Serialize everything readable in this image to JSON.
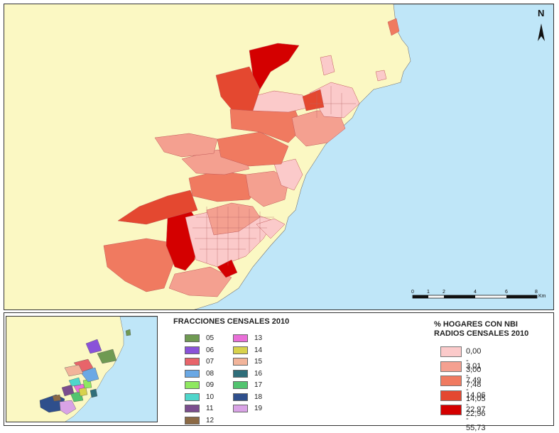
{
  "north_label": "N",
  "scale_bar": {
    "ticks": [
      "0",
      "1",
      "2",
      "4",
      "6",
      "8"
    ],
    "unit": "Km"
  },
  "fraction_legend": {
    "title": "FRACCIONES CENSALES 2010",
    "items": [
      {
        "code": "05",
        "color": "#6f9a52"
      },
      {
        "code": "06",
        "color": "#8a52d9"
      },
      {
        "code": "07",
        "color": "#e8646a"
      },
      {
        "code": "08",
        "color": "#6aa8e4"
      },
      {
        "code": "09",
        "color": "#8fe860"
      },
      {
        "code": "10",
        "color": "#4fd6cb"
      },
      {
        "code": "11",
        "color": "#7b4d8e"
      },
      {
        "code": "12",
        "color": "#8c6a45"
      },
      {
        "code": "13",
        "color": "#e96fd8"
      },
      {
        "code": "14",
        "color": "#d8d24c"
      },
      {
        "code": "15",
        "color": "#f2b49a"
      },
      {
        "code": "16",
        "color": "#2f6e7a"
      },
      {
        "code": "17",
        "color": "#52c46f"
      },
      {
        "code": "18",
        "color": "#2f4f8c"
      },
      {
        "code": "19",
        "color": "#d9a3e6"
      }
    ]
  },
  "nbi_legend": {
    "title_line1": "% HOGARES CON NBI",
    "title_line2": "RADIOS CENSALES 2010",
    "classes": [
      {
        "label": "0,00 - 3,00",
        "color": "#fbcaca"
      },
      {
        "label": "3,01 - 7,48",
        "color": "#f4a090"
      },
      {
        "label": "7,49 - 14,05",
        "color": "#f07a60"
      },
      {
        "label": "14,06 - 22,96",
        "color": "#e44830"
      },
      {
        "label": "22,97 - 55,73",
        "color": "#d40000"
      }
    ]
  },
  "map_colors": {
    "land": "#fbf8c3",
    "sea": "#bfe6f8"
  }
}
